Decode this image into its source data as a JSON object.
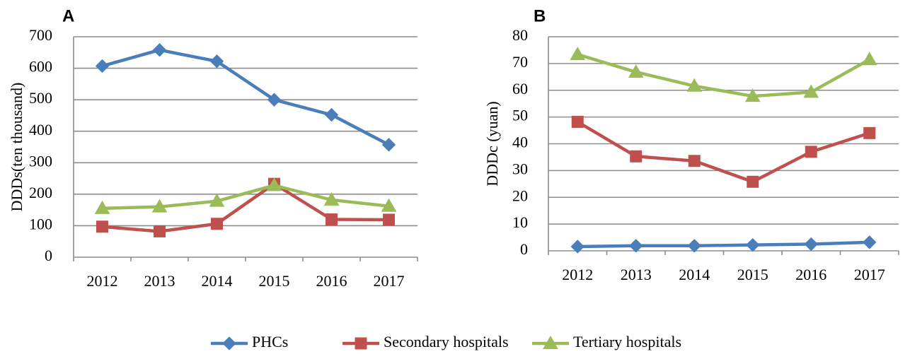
{
  "chart_data": [
    {
      "panel": "A",
      "type": "line",
      "ylabel": "DDDs(ten thousand)",
      "xlabel": "",
      "categories": [
        "2012",
        "2013",
        "2014",
        "2015",
        "2016",
        "2017"
      ],
      "ylim": [
        0,
        700
      ],
      "yticks": [
        "0",
        "100",
        "200",
        "300",
        "400",
        "500",
        "600",
        "700"
      ],
      "grid": true,
      "series": [
        {
          "name": "PHCs",
          "color": "#4a7ebb",
          "marker": "diamond",
          "values": [
            607,
            658,
            622,
            500,
            452,
            357
          ]
        },
        {
          "name": "Secondary hospitals",
          "color": "#c0504d",
          "marker": "square",
          "values": [
            97,
            82,
            106,
            233,
            120,
            119
          ]
        },
        {
          "name": "Tertiary hospitals",
          "color": "#9bbb59",
          "marker": "triangle",
          "values": [
            155,
            160,
            178,
            228,
            182,
            162
          ]
        }
      ]
    },
    {
      "panel": "B",
      "type": "line",
      "ylabel": "DDDc (yuan)",
      "xlabel": "",
      "categories": [
        "2012",
        "2013",
        "2014",
        "2015",
        "2016",
        "2017"
      ],
      "ylim": [
        0,
        80
      ],
      "yticks": [
        "0",
        "10",
        "20",
        "30",
        "40",
        "50",
        "60",
        "70",
        "80"
      ],
      "grid": true,
      "series": [
        {
          "name": "PHCs",
          "color": "#4a7ebb",
          "marker": "diamond",
          "values": [
            1.6,
            1.9,
            1.9,
            2.2,
            2.5,
            3.2
          ]
        },
        {
          "name": "Secondary hospitals",
          "color": "#c0504d",
          "marker": "square",
          "values": [
            48.2,
            35.3,
            33.6,
            25.8,
            37.0,
            44.0
          ]
        },
        {
          "name": "Tertiary hospitals",
          "color": "#9bbb59",
          "marker": "triangle",
          "values": [
            73.4,
            66.8,
            61.6,
            57.8,
            59.3,
            71.5
          ]
        }
      ]
    }
  ],
  "legend": {
    "placement": "bottom-center",
    "items": [
      "PHCs",
      "Secondary hospitals",
      "Tertiary hospitals"
    ]
  }
}
